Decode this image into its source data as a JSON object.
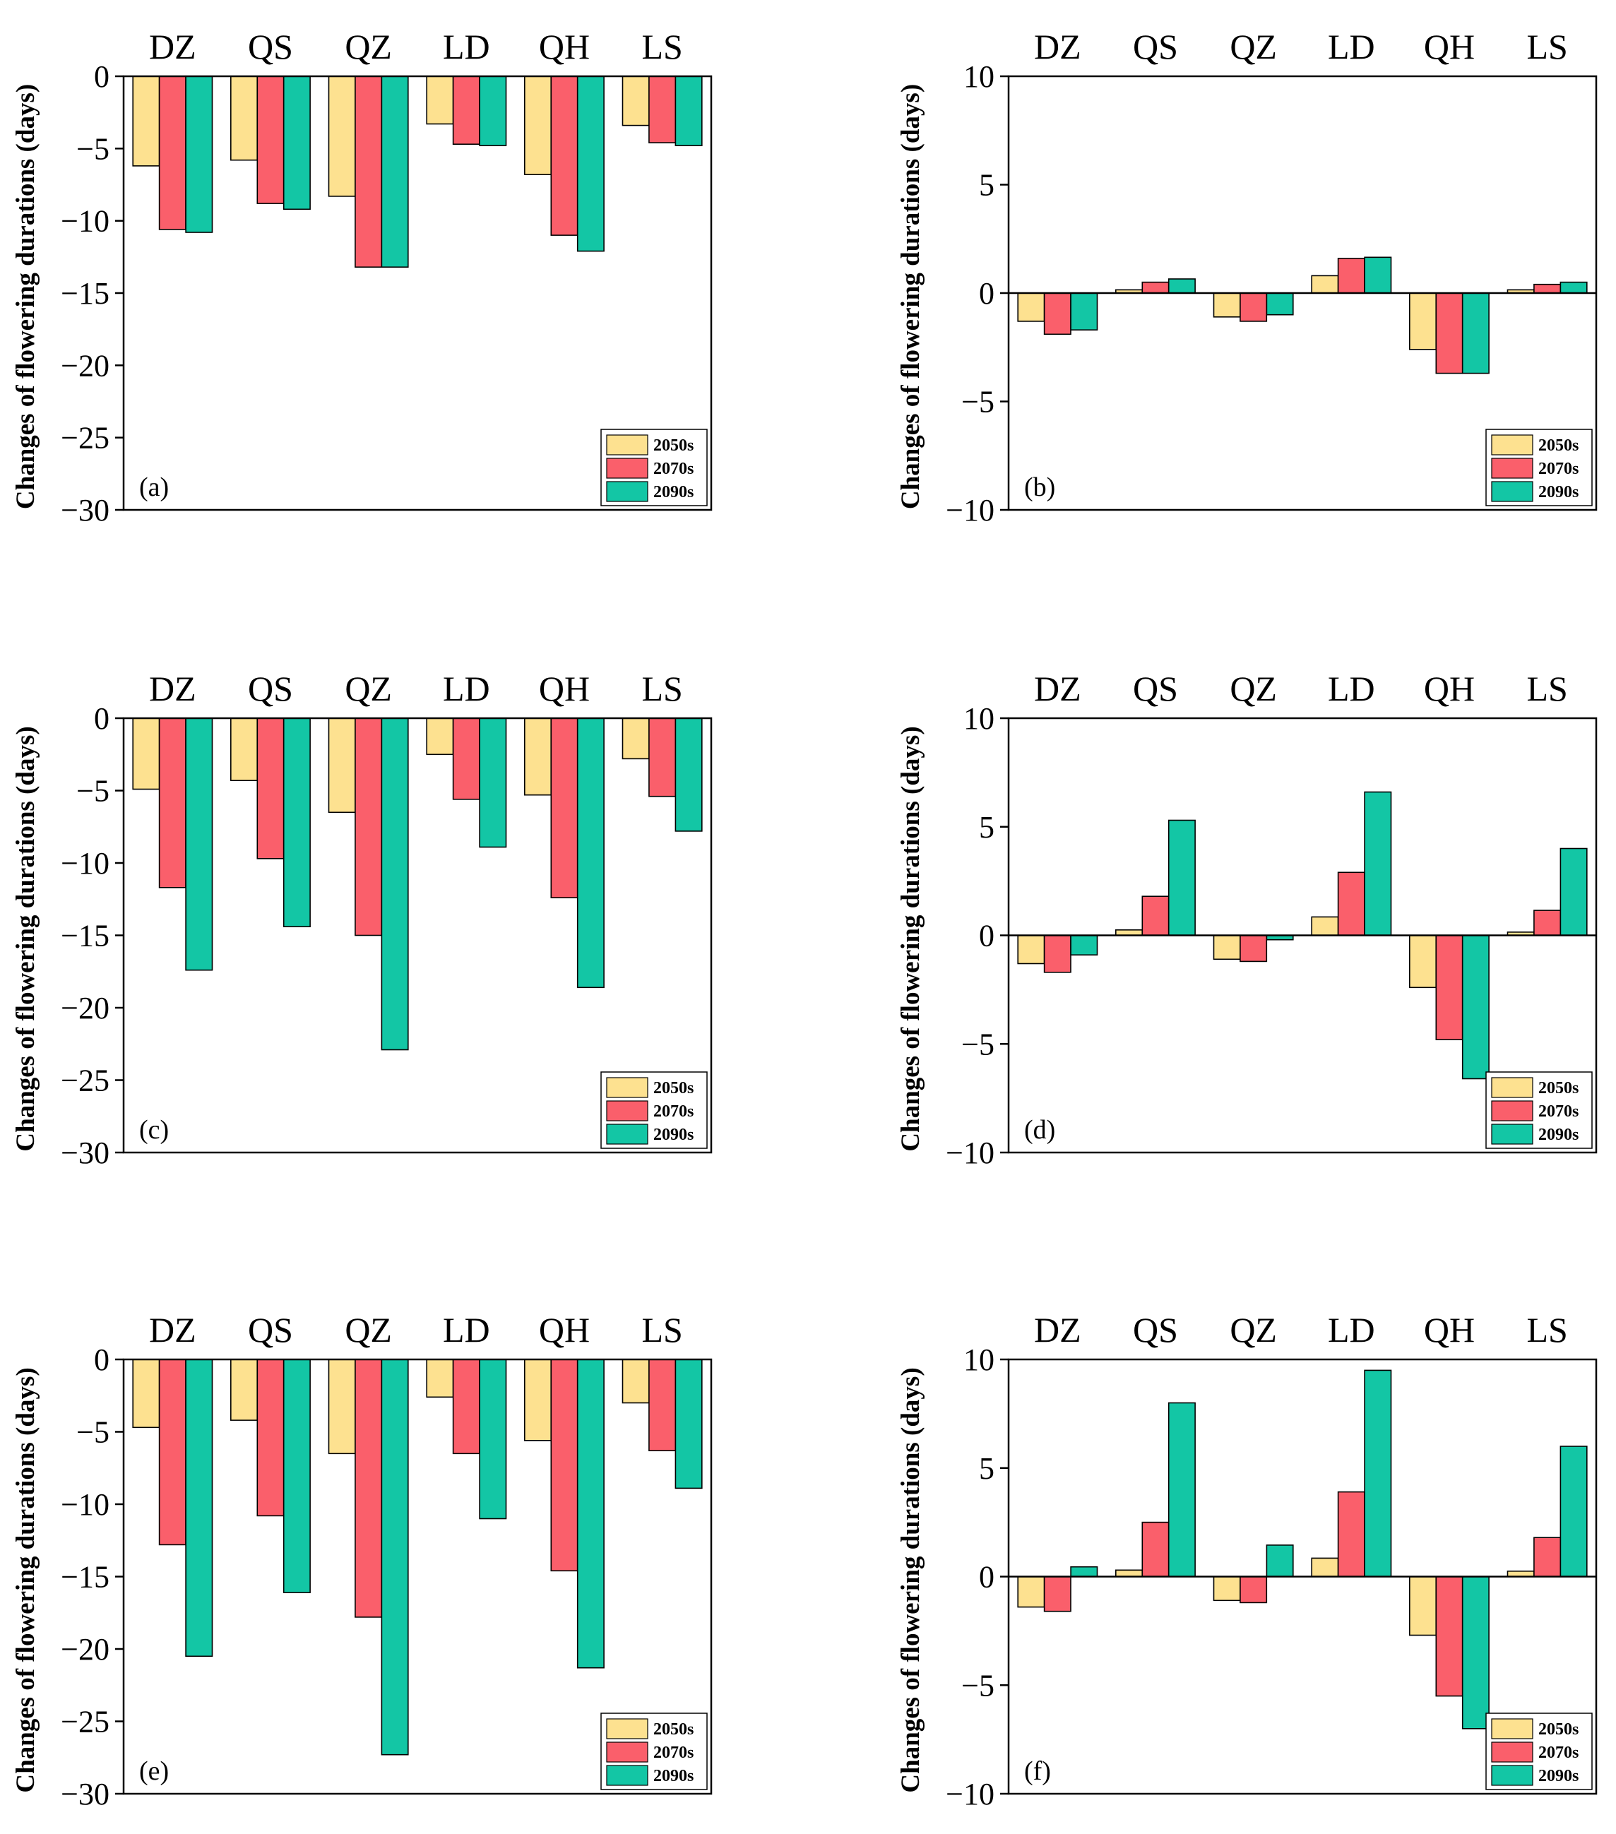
{
  "colors": {
    "2050s": "#fde190",
    "2070s": "#fa5f6b",
    "2090s": "#13c6a5"
  },
  "chart_data": [
    {
      "type": "bar",
      "panel": "(a)",
      "ylabel": "Changes of flowering durations (days)",
      "ylim": [
        -30,
        0
      ],
      "yticks": [
        0,
        -5,
        -10,
        -15,
        -20,
        -25,
        -30
      ],
      "categories": [
        "DZ",
        "QS",
        "QZ",
        "LD",
        "QH",
        "LS"
      ],
      "series": [
        {
          "name": "2050s",
          "values": [
            -6.2,
            -5.8,
            -8.3,
            -3.3,
            -6.8,
            -3.4
          ]
        },
        {
          "name": "2070s",
          "values": [
            -10.6,
            -8.8,
            -13.2,
            -4.7,
            -11.0,
            -4.6
          ]
        },
        {
          "name": "2090s",
          "values": [
            -10.8,
            -9.2,
            -13.2,
            -4.8,
            -12.1,
            -4.8
          ]
        }
      ]
    },
    {
      "type": "bar",
      "panel": "(b)",
      "ylabel": "Changes of flowering durations (days)",
      "ylim": [
        -10,
        10
      ],
      "yticks": [
        10,
        5,
        0,
        -5,
        -10
      ],
      "categories": [
        "DZ",
        "QS",
        "QZ",
        "LD",
        "QH",
        "LS"
      ],
      "series": [
        {
          "name": "2050s",
          "values": [
            -1.3,
            0.15,
            -1.1,
            0.8,
            -2.6,
            0.15
          ]
        },
        {
          "name": "2070s",
          "values": [
            -1.9,
            0.5,
            -1.3,
            1.6,
            -3.7,
            0.4
          ]
        },
        {
          "name": "2090s",
          "values": [
            -1.7,
            0.65,
            -1.0,
            1.65,
            -3.7,
            0.5
          ]
        }
      ]
    },
    {
      "type": "bar",
      "panel": "(c)",
      "ylabel": "Changes of flowering durations (days)",
      "ylim": [
        -30,
        0
      ],
      "yticks": [
        0,
        -5,
        -10,
        -15,
        -20,
        -25,
        -30
      ],
      "categories": [
        "DZ",
        "QS",
        "QZ",
        "LD",
        "QH",
        "LS"
      ],
      "series": [
        {
          "name": "2050s",
          "values": [
            -4.9,
            -4.3,
            -6.5,
            -2.5,
            -5.3,
            -2.8
          ]
        },
        {
          "name": "2070s",
          "values": [
            -11.7,
            -9.7,
            -15.0,
            -5.6,
            -12.4,
            -5.4
          ]
        },
        {
          "name": "2090s",
          "values": [
            -17.4,
            -14.4,
            -22.9,
            -8.9,
            -18.6,
            -7.8
          ]
        }
      ]
    },
    {
      "type": "bar",
      "panel": "(d)",
      "ylabel": "Changes of flowering durations (days)",
      "ylim": [
        -10,
        10
      ],
      "yticks": [
        10,
        5,
        0,
        -5,
        -10
      ],
      "categories": [
        "DZ",
        "QS",
        "QZ",
        "LD",
        "QH",
        "LS"
      ],
      "series": [
        {
          "name": "2050s",
          "values": [
            -1.3,
            0.25,
            -1.1,
            0.85,
            -2.4,
            0.15
          ]
        },
        {
          "name": "2070s",
          "values": [
            -1.7,
            1.8,
            -1.2,
            2.9,
            -4.8,
            1.15
          ]
        },
        {
          "name": "2090s",
          "values": [
            -0.9,
            5.3,
            -0.2,
            6.6,
            -6.6,
            4.0
          ]
        }
      ]
    },
    {
      "type": "bar",
      "panel": "(e)",
      "ylabel": "Changes of flowering durations (days)",
      "ylim": [
        -30,
        0
      ],
      "yticks": [
        0,
        -5,
        -10,
        -15,
        -20,
        -25,
        -30
      ],
      "categories": [
        "DZ",
        "QS",
        "QZ",
        "LD",
        "QH",
        "LS"
      ],
      "series": [
        {
          "name": "2050s",
          "values": [
            -4.7,
            -4.2,
            -6.5,
            -2.6,
            -5.6,
            -3.0
          ]
        },
        {
          "name": "2070s",
          "values": [
            -12.8,
            -10.8,
            -17.8,
            -6.5,
            -14.6,
            -6.3
          ]
        },
        {
          "name": "2090s",
          "values": [
            -20.5,
            -16.1,
            -27.3,
            -11.0,
            -21.3,
            -8.9
          ]
        }
      ]
    },
    {
      "type": "bar",
      "panel": "(f)",
      "ylabel": "Changes of flowering durations (days)",
      "ylim": [
        -10,
        10
      ],
      "yticks": [
        10,
        5,
        0,
        -5,
        -10
      ],
      "categories": [
        "DZ",
        "QS",
        "QZ",
        "LD",
        "QH",
        "LS"
      ],
      "series": [
        {
          "name": "2050s",
          "values": [
            -1.4,
            0.3,
            -1.1,
            0.85,
            -2.7,
            0.25
          ]
        },
        {
          "name": "2070s",
          "values": [
            -1.6,
            2.5,
            -1.2,
            3.9,
            -5.5,
            1.8
          ]
        },
        {
          "name": "2090s",
          "values": [
            0.45,
            8.0,
            1.45,
            9.5,
            -7.0,
            6.0
          ]
        }
      ]
    }
  ]
}
